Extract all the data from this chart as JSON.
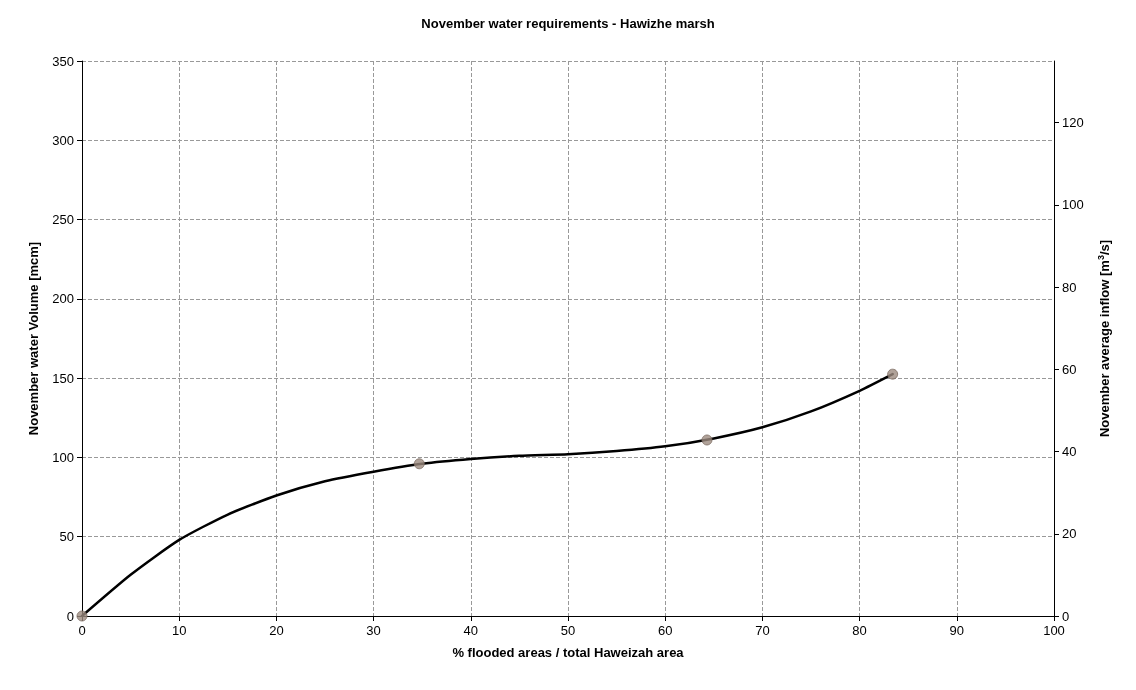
{
  "chart_data": {
    "type": "scatter",
    "title": "November water requirements - Hawizhe marsh",
    "xlabel": "% flooded areas / total Haweizah area",
    "ylabel": "November water Volume [mcm]",
    "y2label": "November average inflow [m$^{3}$/s]",
    "series": [
      {
        "color": "#9c8b80",
        "marker": "circle",
        "x": [
          0,
          34.7,
          64.3,
          83.4
        ],
        "values": [
          0,
          96,
          111,
          152.5
        ]
      },
      {
        "type": "line",
        "color": "#000000",
        "marker": "none",
        "line_style": "solid",
        "x": [
          0,
          5,
          10,
          15,
          20,
          25,
          30,
          35,
          40,
          45,
          50,
          55,
          60,
          65,
          70,
          75,
          80,
          83.4
        ],
        "values": [
          0,
          26,
          48,
          64,
          76,
          85,
          91,
          96,
          99,
          101,
          102,
          104,
          107,
          112,
          119,
          129,
          142,
          152.5
        ]
      }
    ],
    "xlim": [
      0,
      100
    ],
    "xticks": [
      0,
      10,
      20,
      30,
      40,
      50,
      60,
      70,
      80,
      90,
      100
    ],
    "ylim": [
      0,
      350
    ],
    "yticks": [
      0,
      50,
      100,
      150,
      200,
      250,
      300,
      350
    ],
    "y2lim": [
      0,
      135
    ],
    "y2ticks": [
      0,
      20,
      40,
      60,
      80,
      100,
      120
    ],
    "grid": true
  }
}
